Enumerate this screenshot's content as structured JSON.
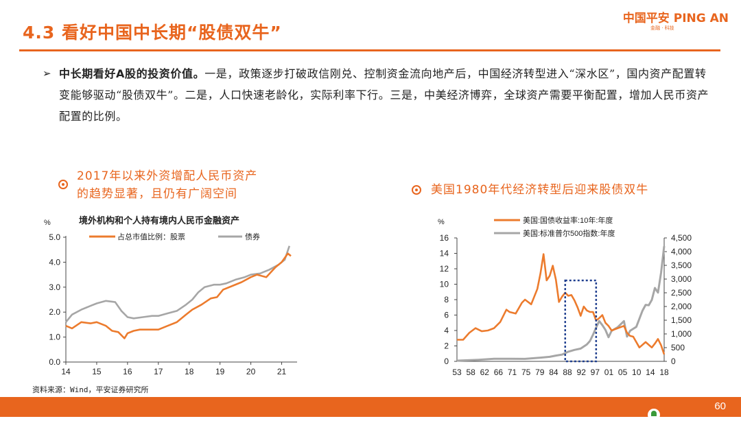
{
  "header": {
    "title": "4.3 看好中国中长期“股债双牛”",
    "logo_main": "中国平安 PING AN",
    "logo_sub": "金融 · 科技"
  },
  "bullet": {
    "lead": "中长期看好A股的投资价值。",
    "body": "一是，政策逐步打破政信刚兑、控制资金流向地产后，中国经济转型进入“深水区”，国内资产配置转变能够驱动“股债双牛”。二是，人口快速老龄化，实际利率下行。三是，中美经济博弈，全球资产需要平衡配置，增加人民币资产配置的比例。"
  },
  "left_panel": {
    "subtitle_line1": "2017年以来外资增配人民币资产",
    "subtitle_line2": "的趋势显著，且仍有广阔空间"
  },
  "right_panel": {
    "subtitle": "美国1980年代经济转型后迎来股债双牛"
  },
  "source": "资料来源：Wind，平安证券研究所",
  "page_number": "60",
  "colors": {
    "accent": "#e8651e",
    "series_orange": "#ec7b2d",
    "series_gray": "#a6a6a6",
    "box_blue": "#1f3f8f"
  },
  "chart_data": [
    {
      "type": "line",
      "title": "境外机构和个人持有境内人民币金融资产",
      "ylabel": "%",
      "ylim": [
        0,
        5
      ],
      "yticks": [
        "0.0",
        "1.0",
        "2.0",
        "3.0",
        "4.0",
        "5.0"
      ],
      "xlim": [
        2014,
        2021.5
      ],
      "xticks": [
        "14",
        "15",
        "16",
        "17",
        "18",
        "19",
        "20",
        "21"
      ],
      "legend_position": "top",
      "series": [
        {
          "name": "占总市值比例：股票",
          "color": "#ec7b2d",
          "x": [
            2014.0,
            2014.2,
            2014.5,
            2014.8,
            2015.0,
            2015.3,
            2015.5,
            2015.7,
            2015.9,
            2016.0,
            2016.2,
            2016.4,
            2016.7,
            2017.0,
            2017.3,
            2017.6,
            2017.9,
            2018.1,
            2018.4,
            2018.7,
            2018.9,
            2019.1,
            2019.4,
            2019.7,
            2020.0,
            2020.2,
            2020.5,
            2020.8,
            2021.0,
            2021.2,
            2021.3
          ],
          "y": [
            1.45,
            1.35,
            1.6,
            1.55,
            1.6,
            1.45,
            1.25,
            1.2,
            0.95,
            1.15,
            1.25,
            1.3,
            1.3,
            1.3,
            1.45,
            1.6,
            1.9,
            2.1,
            2.3,
            2.55,
            2.6,
            2.9,
            3.05,
            3.2,
            3.4,
            3.5,
            3.4,
            3.8,
            4.0,
            4.35,
            4.25
          ]
        },
        {
          "name": "债券",
          "color": "#a6a6a6",
          "x": [
            2014.0,
            2014.2,
            2014.5,
            2014.8,
            2015.0,
            2015.3,
            2015.6,
            2015.8,
            2016.0,
            2016.2,
            2016.5,
            2016.8,
            2017.0,
            2017.3,
            2017.6,
            2017.9,
            2018.1,
            2018.3,
            2018.5,
            2018.8,
            2019.0,
            2019.2,
            2019.5,
            2019.8,
            2020.0,
            2020.3,
            2020.6,
            2020.9,
            2021.1,
            2021.25
          ],
          "y": [
            1.6,
            1.9,
            2.1,
            2.25,
            2.35,
            2.45,
            2.4,
            2.05,
            1.8,
            1.75,
            1.8,
            1.85,
            1.85,
            1.95,
            2.05,
            2.3,
            2.5,
            2.8,
            3.0,
            3.1,
            3.1,
            3.15,
            3.3,
            3.4,
            3.5,
            3.55,
            3.7,
            3.9,
            4.1,
            4.65
          ]
        }
      ]
    },
    {
      "type": "line",
      "ylabel": "%",
      "ylim": [
        0,
        16
      ],
      "yticks": [
        "0",
        "2",
        "4",
        "6",
        "8",
        "10",
        "12",
        "14",
        "16"
      ],
      "y2lim": [
        0,
        4500
      ],
      "y2ticks": [
        "0",
        "500",
        "1,000",
        "1,500",
        "2,000",
        "2,500",
        "3,000",
        "3,500",
        "4,000",
        "4,500"
      ],
      "xlim": [
        1953,
        2020
      ],
      "xticks": [
        "53",
        "58",
        "62",
        "66",
        "71",
        "75",
        "79",
        "84",
        "88",
        "92",
        "97",
        "01",
        "05",
        "10",
        "14",
        "18"
      ],
      "legend_position": "top",
      "highlight_box": {
        "x_from": 1988,
        "x_to": 1998
      },
      "series": [
        {
          "name": "美国:国债收益率:10年:年度",
          "axis": "left",
          "color": "#ec7b2d",
          "x": [
            1953,
            1955,
            1957,
            1959,
            1961,
            1963,
            1965,
            1967,
            1969,
            1970,
            1972,
            1974,
            1975,
            1977,
            1979,
            1980,
            1981,
            1982,
            1983,
            1984,
            1985,
            1986,
            1987,
            1988,
            1989,
            1990,
            1991,
            1992,
            1993,
            1994,
            1995,
            1996,
            1997,
            1998,
            1999,
            2000,
            2001,
            2002,
            2003,
            2005,
            2007,
            2008,
            2009,
            2010,
            2012,
            2014,
            2016,
            2017,
            2018,
            2019,
            2020
          ],
          "y": [
            2.8,
            2.8,
            3.7,
            4.3,
            3.9,
            4.0,
            4.3,
            5.1,
            6.7,
            6.4,
            6.2,
            7.6,
            8.0,
            7.4,
            9.4,
            11.4,
            13.9,
            10.5,
            11.1,
            12.4,
            10.6,
            7.7,
            8.4,
            8.9,
            8.5,
            8.6,
            7.9,
            7.0,
            5.9,
            7.1,
            6.6,
            6.4,
            6.4,
            5.3,
            5.6,
            6.0,
            5.0,
            4.6,
            4.0,
            4.3,
            4.6,
            3.7,
            3.3,
            3.2,
            1.8,
            2.5,
            1.8,
            2.3,
            2.9,
            2.1,
            0.9
          ]
        },
        {
          "name": "美国:标准普尔500指数:年度",
          "axis": "right",
          "color": "#a6a6a6",
          "x": [
            1953,
            1960,
            1965,
            1970,
            1975,
            1980,
            1983,
            1985,
            1987,
            1989,
            1991,
            1993,
            1995,
            1996,
            1997,
            1998,
            1999,
            2000,
            2001,
            2002,
            2003,
            2005,
            2007,
            2008,
            2009,
            2011,
            2013,
            2014,
            2015,
            2016,
            2017,
            2018,
            2019,
            2020
          ],
          "y": [
            25,
            58,
            92,
            92,
            90,
            136,
            165,
            211,
            247,
            353,
            417,
            466,
            616,
            741,
            970,
            1229,
            1469,
            1320,
            1148,
            880,
            1112,
            1248,
            1468,
            903,
            1115,
            1258,
            1848,
            2059,
            2044,
            2239,
            2674,
            2507,
            3231,
            4200
          ]
        }
      ]
    }
  ]
}
